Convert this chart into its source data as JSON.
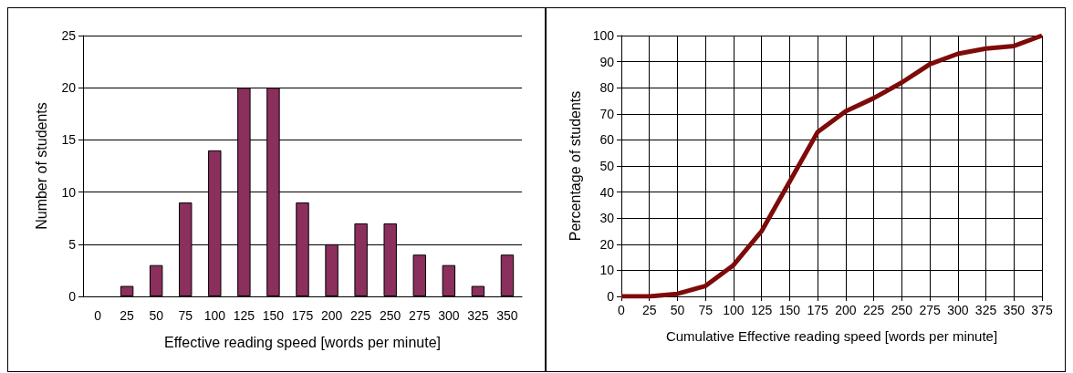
{
  "chart_data": [
    {
      "type": "bar",
      "xlabel": "Effective reading speed [words per minute]",
      "ylabel": "Number of students",
      "categories": [
        "0",
        "25",
        "50",
        "75",
        "100",
        "125",
        "150",
        "175",
        "200",
        "225",
        "250",
        "275",
        "300",
        "325",
        "350"
      ],
      "values": [
        0,
        1,
        3,
        9,
        14,
        20,
        20,
        9,
        5,
        7,
        7,
        4,
        3,
        1,
        4
      ],
      "color": "#8b2f5c",
      "ylim": [
        0,
        25
      ],
      "yticks": [
        0,
        5,
        10,
        15,
        20,
        25
      ],
      "grid": "y"
    },
    {
      "type": "line",
      "xlabel": "Cumulative Effective reading speed [words per minute]",
      "ylabel": "Percentage of students",
      "x": [
        0,
        25,
        50,
        75,
        100,
        125,
        150,
        175,
        200,
        225,
        250,
        275,
        300,
        325,
        350,
        375
      ],
      "values": [
        0,
        0,
        1,
        4,
        12,
        25,
        44,
        63,
        71,
        76,
        82,
        89,
        93,
        95,
        96,
        100
      ],
      "color": "#7f0a0a",
      "marker": "none",
      "xlim": [
        0,
        375
      ],
      "xticks": [
        0,
        25,
        50,
        75,
        100,
        125,
        150,
        175,
        200,
        225,
        250,
        275,
        300,
        325,
        350,
        375
      ],
      "ylim": [
        0,
        100
      ],
      "yticks": [
        0,
        10,
        20,
        30,
        40,
        50,
        60,
        70,
        80,
        90,
        100
      ],
      "grid": true
    }
  ]
}
